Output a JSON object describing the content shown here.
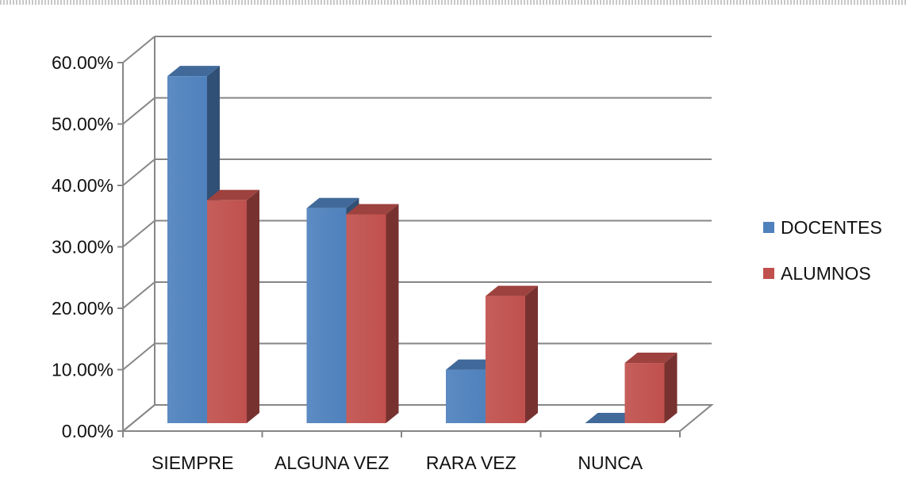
{
  "chart_data": {
    "type": "bar",
    "categories": [
      "SIEMPRE",
      "ALGUNA VEZ",
      "RARA VEZ",
      "NUNCA"
    ],
    "series": [
      {
        "name": "DOCENTES",
        "values": [
          56.5,
          35.0,
          8.7,
          0.0
        ],
        "color": "#4f81bd"
      },
      {
        "name": "ALUMNOS",
        "values": [
          36.3,
          34.0,
          20.7,
          9.8
        ],
        "color": "#c0504d"
      }
    ],
    "y_ticks": [
      "0.00%",
      "10.00%",
      "20.00%",
      "30.00%",
      "40.00%",
      "50.00%",
      "60.00%"
    ],
    "ylim": [
      0,
      60
    ],
    "grid": true,
    "style": "3d-clustered-column",
    "legend_position": "right"
  }
}
